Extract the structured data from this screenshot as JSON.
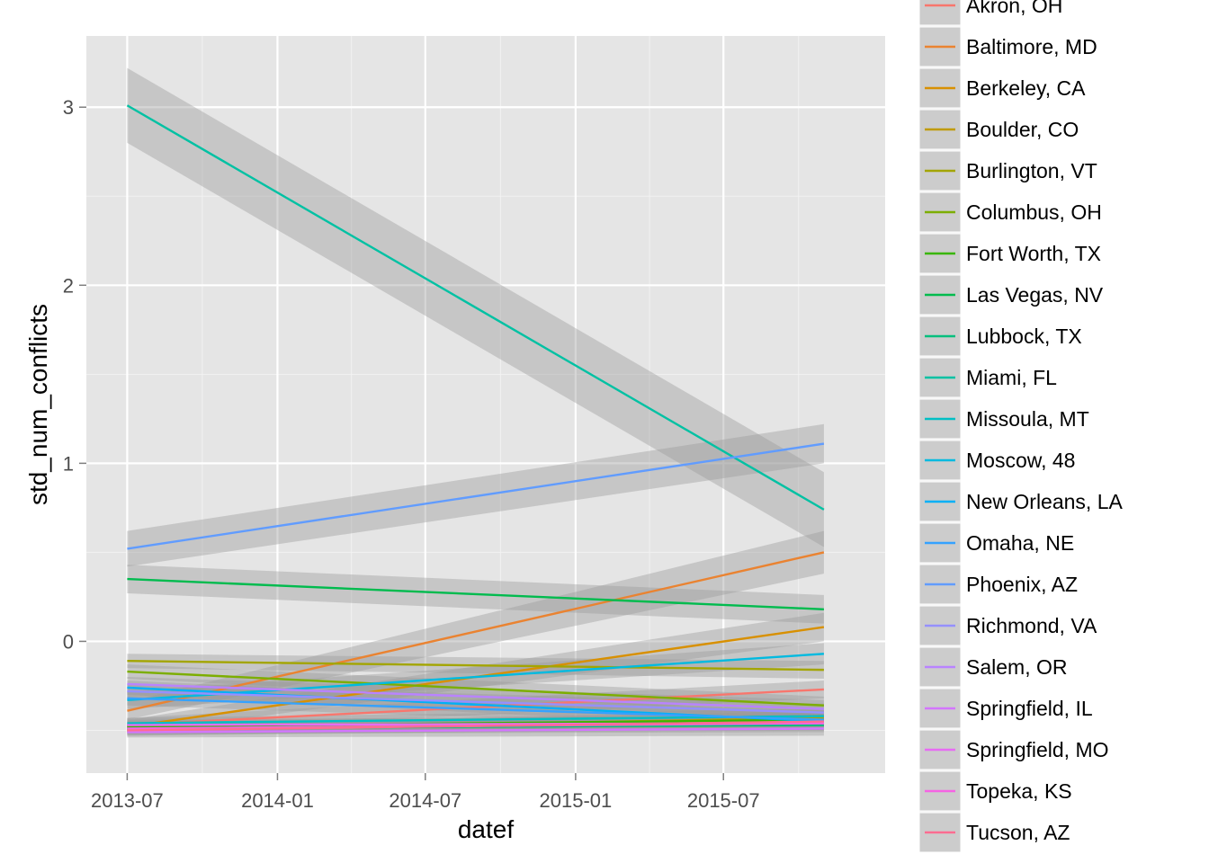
{
  "chart_data": {
    "type": "line",
    "xlabel": "datef",
    "ylabel": "std_num_conflicts",
    "x_ticks": [
      "2013-07",
      "2014-01",
      "2014-07",
      "2015-01",
      "2015-07"
    ],
    "y_ticks": [
      "0",
      "1",
      "2",
      "3"
    ],
    "xlim": [
      "2013-05-12",
      "2016-01-15"
    ],
    "ylim": [
      -0.74,
      3.4
    ],
    "grid": true,
    "smoothing": "linear fit with grey confidence band",
    "legend_position": "right",
    "x": [
      "2013-07-01",
      "2015-11-01"
    ],
    "series": [
      {
        "name": "Akron, OH",
        "color": "#F8766D",
        "values": [
          -0.47,
          -0.27
        ],
        "band": [
          0.04,
          0.05
        ]
      },
      {
        "name": "Baltimore, MD",
        "color": "#EA8331",
        "values": [
          -0.39,
          0.5
        ],
        "band": [
          0.05,
          0.12
        ]
      },
      {
        "name": "Berkeley, CA",
        "color": "#D89000",
        "values": [
          -0.48,
          0.08
        ],
        "band": [
          0.04,
          0.08
        ]
      },
      {
        "name": "Boulder, CO",
        "color": "#C09B00",
        "values": [
          -0.5,
          -0.43
        ],
        "band": [
          0.03,
          0.04
        ]
      },
      {
        "name": "Burlington, VT",
        "color": "#A3A500",
        "values": [
          -0.11,
          -0.16
        ],
        "band": [
          0.04,
          0.05
        ]
      },
      {
        "name": "Columbus, OH",
        "color": "#7CAE00",
        "values": [
          -0.17,
          -0.36
        ],
        "band": [
          0.04,
          0.05
        ]
      },
      {
        "name": "Fort Worth, TX",
        "color": "#39B600",
        "values": [
          -0.48,
          -0.44
        ],
        "band": [
          0.03,
          0.04
        ]
      },
      {
        "name": "Las Vegas, NV",
        "color": "#00BB4E",
        "values": [
          0.35,
          0.18
        ],
        "band": [
          0.08,
          0.08
        ]
      },
      {
        "name": "Lubbock, TX",
        "color": "#00BF7D",
        "values": [
          -0.49,
          -0.47
        ],
        "band": [
          0.03,
          0.04
        ]
      },
      {
        "name": "Miami, FL",
        "color": "#00C1A3",
        "values": [
          3.01,
          0.74
        ],
        "band": [
          0.21,
          0.21
        ]
      },
      {
        "name": "Missoula, MT",
        "color": "#00BFC4",
        "values": [
          -0.46,
          -0.42
        ],
        "band": [
          0.03,
          0.04
        ]
      },
      {
        "name": "Moscow, 48",
        "color": "#00BAE0",
        "values": [
          -0.33,
          -0.07
        ],
        "band": [
          0.05,
          0.06
        ]
      },
      {
        "name": "New Orleans, LA",
        "color": "#00B0F6",
        "values": [
          -0.26,
          -0.45
        ],
        "band": [
          0.04,
          0.05
        ]
      },
      {
        "name": "Omaha, NE",
        "color": "#35A2FF",
        "values": [
          -0.32,
          -0.44
        ],
        "band": [
          0.04,
          0.05
        ]
      },
      {
        "name": "Phoenix, AZ",
        "color": "#619CFF",
        "values": [
          0.52,
          1.11
        ],
        "band": [
          0.1,
          0.11
        ]
      },
      {
        "name": "Richmond, VA",
        "color": "#9590FF",
        "values": [
          -0.28,
          -0.4
        ],
        "band": [
          0.04,
          0.05
        ]
      },
      {
        "name": "Salem, OR",
        "color": "#B983FF",
        "values": [
          -0.24,
          -0.38
        ],
        "band": [
          0.04,
          0.05
        ]
      },
      {
        "name": "Springfield, IL",
        "color": "#D376FF",
        "values": [
          -0.51,
          -0.49
        ],
        "band": [
          0.03,
          0.04
        ]
      },
      {
        "name": "Springfield, MO",
        "color": "#E76BF3",
        "values": [
          -0.47,
          -0.46
        ],
        "band": [
          0.03,
          0.04
        ]
      },
      {
        "name": "Topeka, KS",
        "color": "#F564E3",
        "values": [
          -0.49,
          -0.46
        ],
        "band": [
          0.03,
          0.04
        ]
      },
      {
        "name": "Tucson, AZ",
        "color": "#FF6C91",
        "values": [
          -0.5,
          -0.45
        ],
        "band": [
          0.03,
          0.04
        ]
      }
    ]
  }
}
